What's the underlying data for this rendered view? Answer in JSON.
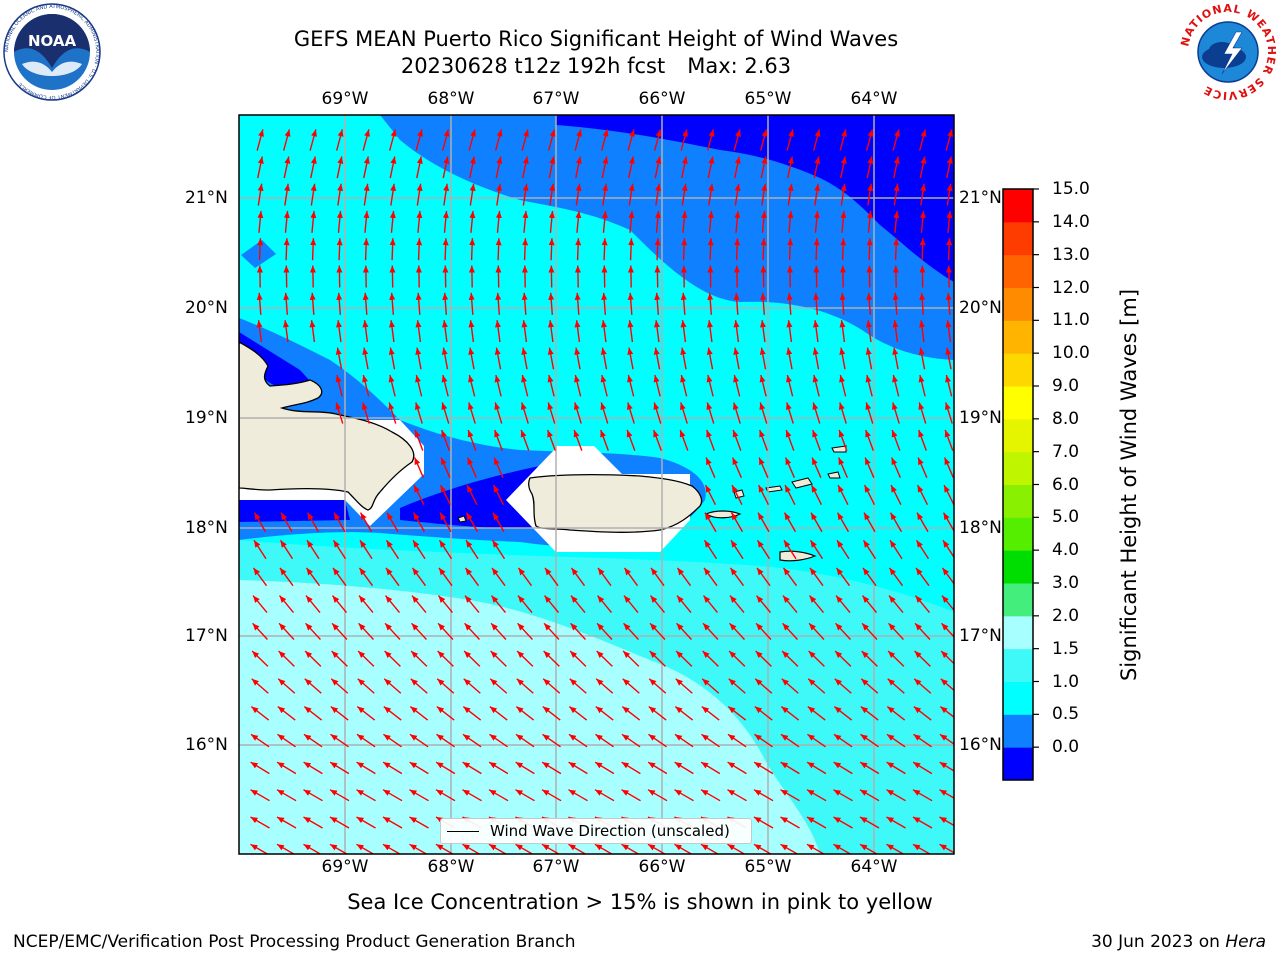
{
  "title_line1": "GEFS MEAN Puerto Rico Significant Height of Wind Waves",
  "title_line2": "20230628 t12z 192h fcst",
  "title_max": "Max: 2.63",
  "noaa_logo_text": "NOAA",
  "noaa_ring_text": "NATIONAL OCEANIC AND ATMOSPHERIC ADMINISTRATION · U.S. DEPARTMENT OF COMMERCE",
  "nws_ring_text": "NATIONAL WEATHER SERVICE",
  "longitude_labels": [
    "69°W",
    "68°W",
    "67°W",
    "66°W",
    "65°W",
    "64°W"
  ],
  "latitude_labels": [
    "21°N",
    "20°N",
    "19°N",
    "18°N",
    "17°N",
    "16°N"
  ],
  "colorbar": {
    "label": "Significant Height of Wind Waves [m]",
    "ticks": [
      "15.0",
      "14.0",
      "13.0",
      "12.0",
      "11.0",
      "10.0",
      "9.0",
      "8.0",
      "7.0",
      "6.0",
      "5.0",
      "4.0",
      "3.0",
      "2.0",
      "1.5",
      "1.0",
      "0.5",
      "0.0"
    ],
    "colors": [
      "#0000ff",
      "#0f80ff",
      "#00ffff",
      "#3ff8f8",
      "#a8ffff",
      "#44ee7c",
      "#00dd00",
      "#55ee00",
      "#88f000",
      "#c0f500",
      "#e5f500",
      "#ffff00",
      "#ffd700",
      "#ffb400",
      "#ff8c00",
      "#ff6400",
      "#ff3c00",
      "#ff0000"
    ]
  },
  "legend_label": "Wind Wave Direction (unscaled)",
  "colors": {
    "land": "#f0ecdc",
    "grid": "#b0b0b0",
    "arrow": "#ff0000"
  },
  "note": "Sea Ice Concentration > 15% is shown in pink to yellow",
  "footer_left": "NCEP/EMC/Verification Post Processing Product Generation Branch",
  "footer_date": "30 Jun 2023 on",
  "footer_host": "Hera"
}
